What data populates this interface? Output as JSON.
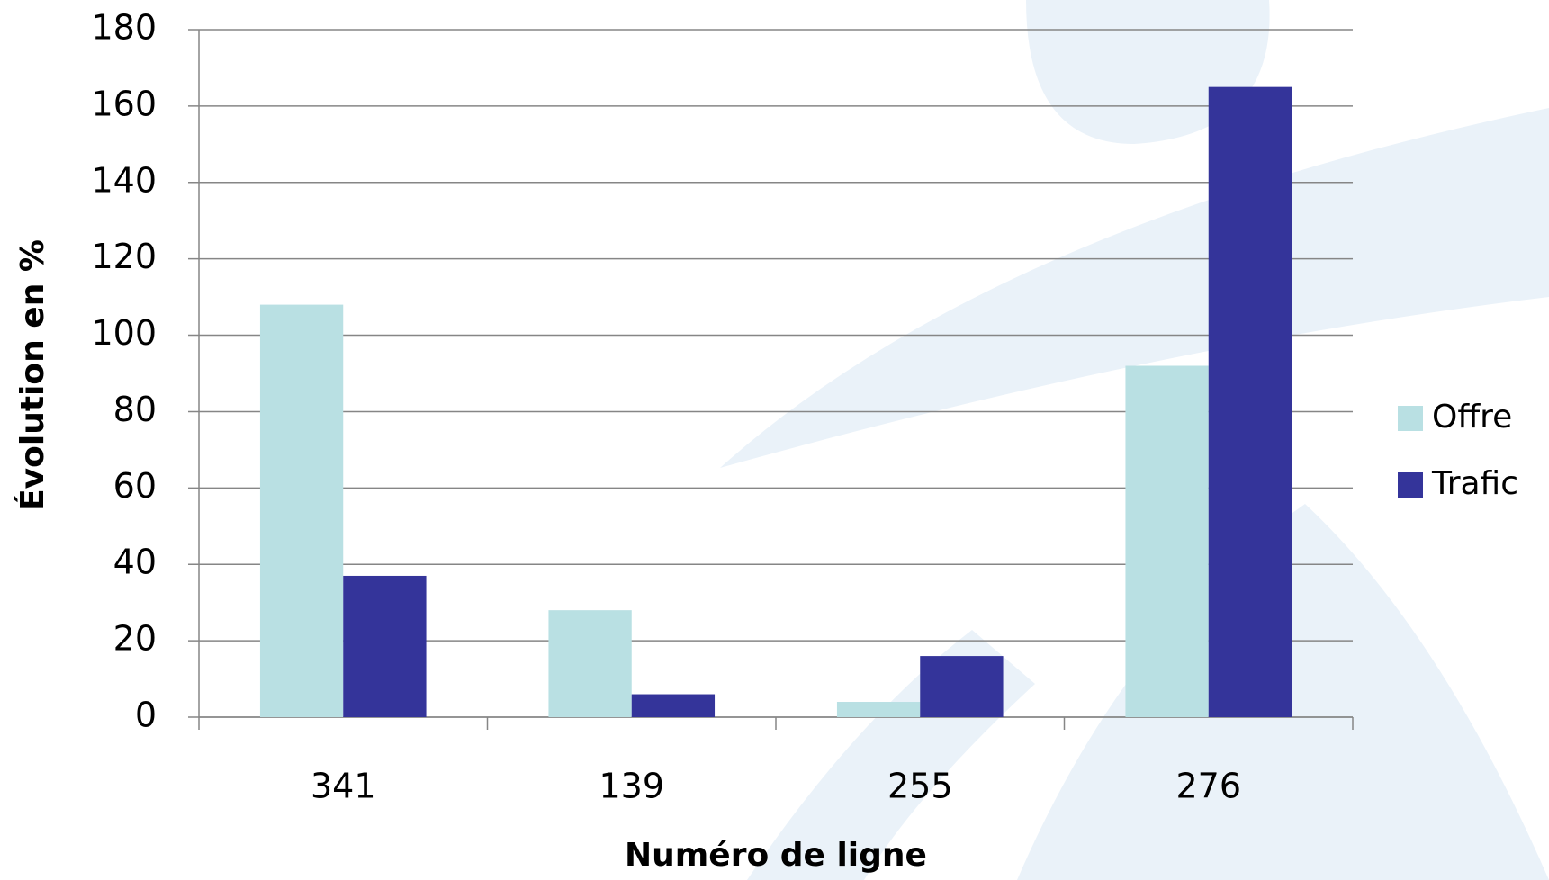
{
  "chart_data": {
    "type": "bar",
    "x_label": "Numéro de ligne",
    "y_label": "Évolution en %",
    "categories": [
      "341",
      "139",
      "255",
      "276"
    ],
    "series": [
      {
        "name": "Offre",
        "color": "#b9e0e3",
        "values": [
          108,
          28,
          4,
          92
        ]
      },
      {
        "name": "Trafic",
        "color": "#34349a",
        "values": [
          37,
          6,
          16,
          165
        ]
      }
    ],
    "ylim": [
      0,
      180
    ],
    "yticks": [
      0,
      20,
      40,
      60,
      80,
      100,
      120,
      140,
      160,
      180
    ],
    "grid": true,
    "legend": "right"
  }
}
